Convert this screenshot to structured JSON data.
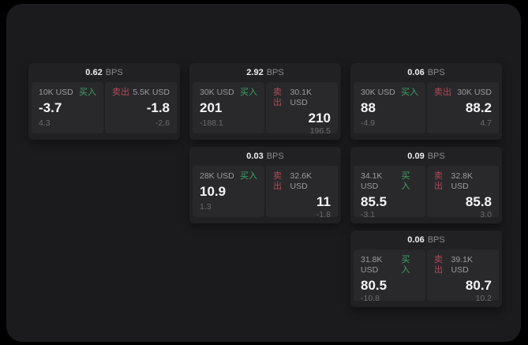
{
  "labels": {
    "bps_unit": "BPS",
    "buy": "买入",
    "sell": "卖出"
  },
  "colors": {
    "buy_accent": "#3fa266",
    "sell_accent": "#b04a58",
    "background": "#000000",
    "panel_background": "#1b1b1d",
    "card_background": "#212123",
    "tile_background": "#29292b"
  },
  "cards": [
    {
      "row": 1,
      "col": 1,
      "bps": "0.62",
      "buy": {
        "amount": "10K USD",
        "price": "-3.7",
        "delta": "4.3"
      },
      "sell": {
        "amount": "5.5K USD",
        "price": "-1.8",
        "delta": "-2.6"
      }
    },
    {
      "row": 1,
      "col": 2,
      "bps": "2.92",
      "buy": {
        "amount": "30K USD",
        "price": "201",
        "delta": "-188.1"
      },
      "sell": {
        "amount": "30.1K USD",
        "price": "210",
        "delta": "196.5"
      }
    },
    {
      "row": 1,
      "col": 3,
      "bps": "0.06",
      "buy": {
        "amount": "30K USD",
        "price": "88",
        "delta": "-4.9"
      },
      "sell": {
        "amount": "30K USD",
        "price": "88.2",
        "delta": "4.7"
      }
    },
    {
      "row": 2,
      "col": 2,
      "bps": "0.03",
      "buy": {
        "amount": "28K USD",
        "price": "10.9",
        "delta": "1.3"
      },
      "sell": {
        "amount": "32.6K USD",
        "price": "11",
        "delta": "-1.8"
      }
    },
    {
      "row": 2,
      "col": 3,
      "bps": "0.09",
      "buy": {
        "amount": "34.1K USD",
        "price": "85.5",
        "delta": "-3.1"
      },
      "sell": {
        "amount": "32.8K USD",
        "price": "85.8",
        "delta": "3.0"
      }
    },
    {
      "row": 3,
      "col": 3,
      "bps": "0.06",
      "buy": {
        "amount": "31.8K USD",
        "price": "80.5",
        "delta": "-10.8"
      },
      "sell": {
        "amount": "39.1K USD",
        "price": "80.7",
        "delta": "10.2"
      }
    }
  ]
}
